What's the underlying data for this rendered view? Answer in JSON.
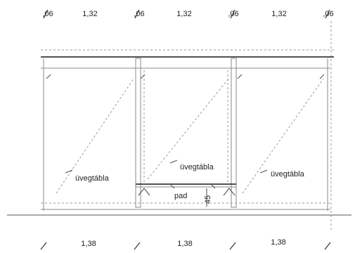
{
  "dimensions": {
    "top": [
      {
        "text": ",06"
      },
      {
        "text": "1,32"
      },
      {
        "text": ",06"
      },
      {
        "text": "1,32"
      },
      {
        "text": ",06"
      },
      {
        "text": "1,32"
      },
      {
        "text": ",06"
      }
    ],
    "bottom": [
      {
        "text": "1,38"
      },
      {
        "text": "1,38"
      },
      {
        "text": "1,38"
      }
    ]
  },
  "labels": {
    "glass_left": "üvegtábla",
    "glass_middle": "üvegtábla",
    "glass_right": "üvegtábla",
    "bench": "pad",
    "bench_height": "45"
  }
}
